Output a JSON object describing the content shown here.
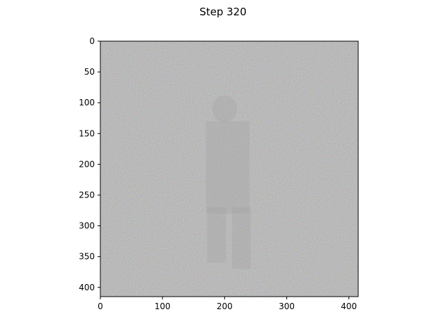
{
  "chart_data": {
    "type": "heatmap",
    "title": "Step 320",
    "subtitle": "",
    "xlabel": "",
    "ylabel": "",
    "xlim": [
      0,
      415
    ],
    "ylim": [
      415,
      0
    ],
    "x_ticks": [
      0,
      100,
      200,
      300,
      400
    ],
    "y_ticks": [
      0,
      50,
      100,
      150,
      200,
      250,
      300,
      350,
      400
    ],
    "grid": false,
    "legend": "none",
    "image_description_values": {
      "base_gray": "#b4b4b4",
      "noise_colors": [
        "#c8a0c8",
        "#a0c8c8",
        "#c8c8a0",
        "#909090",
        "#e0e0e0"
      ],
      "figure_gray": "#9a9a9a"
    }
  }
}
